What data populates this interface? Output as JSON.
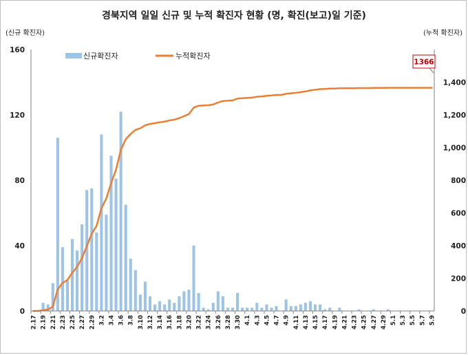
{
  "chart_data": {
    "type": "bar+line",
    "title": "경북지역 일일 신규 및 누적 확진자 현황 (명, 확진(보고)일 기준)",
    "left_axis_unit": "(신규 확진자)",
    "right_axis_unit": "(누적 확진자)",
    "left_ylim": [
      0,
      160
    ],
    "left_yticks": [
      "0",
      "40",
      "80",
      "120",
      "160"
    ],
    "right_ylim": [
      0,
      1600
    ],
    "right_yticks": [
      "0",
      "200",
      "400",
      "600",
      "800",
      "1,000",
      "1,200",
      "1,400"
    ],
    "xtick_labels": [
      "2.17",
      "2.19",
      "2.21",
      "2.23",
      "2.25",
      "2.27",
      "2.29",
      "3.2",
      "3.4",
      "3.6",
      "3.8",
      "3.10",
      "3.12",
      "3.14",
      "3.16",
      "3.18",
      "3.20",
      "3.22",
      "3.24",
      "3.26",
      "3.28",
      "3.30",
      "4.1",
      "4.3",
      "4.5",
      "4.7",
      "4.9",
      "4.11",
      "4.13",
      "4.15",
      "4.17",
      "4.19",
      "4.21",
      "4.23",
      "4.25",
      "4.27",
      "4.29",
      "5.1",
      "5.3",
      "5.5",
      "5.7",
      "5.9"
    ],
    "legend": {
      "position": "top-left",
      "bar_label": "신규확진자",
      "line_label": "누적확진자"
    },
    "callout": {
      "text": "1366"
    },
    "colors": {
      "bar": "#9dc3e6",
      "line": "#ed7d31",
      "axis": "#808080",
      "callout_border": "#c00000"
    },
    "series": [
      {
        "name": "신규확진자",
        "kind": "bar",
        "values": [
          0,
          0,
          5,
          4,
          17,
          106,
          39,
          19,
          44,
          37,
          53,
          74,
          75,
          48,
          108,
          59,
          95,
          81,
          122,
          65,
          32,
          25,
          10,
          18,
          9,
          4,
          6,
          4,
          7,
          5,
          9,
          12,
          13,
          40,
          11,
          2,
          1,
          5,
          12,
          9,
          2,
          2,
          11,
          2,
          2,
          2,
          5,
          2,
          4,
          2,
          3,
          0,
          7,
          3,
          3,
          4,
          5,
          6,
          4,
          4,
          1,
          2,
          0,
          2,
          0,
          0,
          0,
          1,
          0,
          0,
          1,
          0,
          0,
          1,
          0,
          0,
          0,
          0,
          0,
          0,
          0,
          0,
          0
        ]
      },
      {
        "name": "누적확진자",
        "kind": "line",
        "values": [
          0,
          0,
          5,
          9,
          26,
          132,
          171,
          190,
          234,
          271,
          324,
          398,
          473,
          521,
          629,
          688,
          783,
          864,
          986,
          1051,
          1083,
          1108,
          1118,
          1136,
          1145,
          1149,
          1155,
          1159,
          1166,
          1171,
          1180,
          1192,
          1205,
          1245,
          1256,
          1258,
          1259,
          1264,
          1276,
          1285,
          1287,
          1289,
          1300,
          1302,
          1304,
          1306,
          1311,
          1313,
          1317,
          1319,
          1322,
          1322,
          1329,
          1332,
          1335,
          1339,
          1344,
          1350,
          1354,
          1358,
          1359,
          1361,
          1361,
          1363,
          1363,
          1363,
          1363,
          1364,
          1364,
          1364,
          1365,
          1365,
          1365,
          1366,
          1366,
          1366,
          1366,
          1366,
          1366,
          1366,
          1366,
          1366,
          1366
        ]
      }
    ]
  }
}
